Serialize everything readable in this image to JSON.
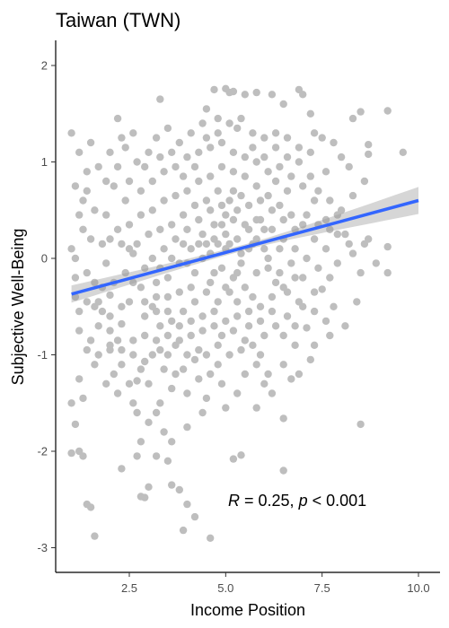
{
  "chart_data": {
    "type": "scatter",
    "title": "Taiwan (TWN)",
    "xlabel": "Income Position",
    "ylabel": "Subjective Well-Being",
    "xlim": [
      0.6,
      10.5
    ],
    "ylim": [
      -3.25,
      2.3
    ],
    "x_ticks": [
      2.5,
      5.0,
      7.5,
      10.0
    ],
    "x_tick_labels": [
      "2.5",
      "5.0",
      "7.5",
      "10.0"
    ],
    "y_ticks": [
      -3,
      -2,
      -1,
      0,
      1,
      2
    ],
    "y_tick_labels": [
      "-3",
      "-2",
      "-1",
      "0",
      "1",
      "2"
    ],
    "grid": false,
    "point_color": "#bebebe",
    "fit": {
      "x_range": [
        1.0,
        10.0
      ],
      "y_start": -0.37,
      "y_end": 0.6,
      "line_color": "#3366ff",
      "band_color": "#999999",
      "band_half_width_start": 0.09,
      "band_half_width_mid": 0.03,
      "band_half_width_end": 0.14
    },
    "annotation": {
      "r_symbol": "R",
      "r_text": " = 0.25, ",
      "p_symbol": "p",
      "p_text": " < 0.001"
    },
    "points": [
      [
        1.0,
        1.3
      ],
      [
        1.1,
        0.75
      ],
      [
        1.2,
        1.1
      ],
      [
        1.0,
        0.1
      ],
      [
        1.1,
        -0.2
      ],
      [
        1.2,
        -0.75
      ],
      [
        1.0,
        -1.5
      ],
      [
        1.1,
        -1.72
      ],
      [
        1.0,
        -2.02
      ],
      [
        1.2,
        -2.0
      ],
      [
        1.3,
        -2.05
      ],
      [
        1.4,
        -2.55
      ],
      [
        1.5,
        -2.58
      ],
      [
        1.6,
        -2.88
      ],
      [
        1.3,
        0.6
      ],
      [
        1.4,
        0.9
      ],
      [
        1.5,
        1.2
      ],
      [
        1.5,
        0.2
      ],
      [
        1.6,
        -0.5
      ],
      [
        1.7,
        -1.0
      ],
      [
        1.8,
        -0.3
      ],
      [
        1.3,
        -1.45
      ],
      [
        1.9,
        0.45
      ],
      [
        2.0,
        -0.9
      ],
      [
        2.1,
        -1.2
      ],
      [
        2.2,
        1.45
      ],
      [
        2.3,
        -2.18
      ],
      [
        2.4,
        0.6
      ],
      [
        2.5,
        0.1
      ],
      [
        2.6,
        -1.5
      ],
      [
        2.7,
        -2.05
      ],
      [
        2.8,
        -2.47
      ],
      [
        2.9,
        -2.48
      ],
      [
        3.0,
        -2.37
      ],
      [
        3.1,
        -0.5
      ],
      [
        3.2,
        -1.6
      ],
      [
        3.3,
        1.65
      ],
      [
        3.4,
        -1.8
      ],
      [
        3.5,
        -2.1
      ],
      [
        3.6,
        -2.35
      ],
      [
        3.8,
        -2.4
      ],
      [
        3.9,
        -2.82
      ],
      [
        4.0,
        -2.55
      ],
      [
        4.2,
        -2.68
      ],
      [
        4.5,
        1.55
      ],
      [
        4.6,
        -2.9
      ],
      [
        4.7,
        1.75
      ],
      [
        5.0,
        1.76
      ],
      [
        5.1,
        1.72
      ],
      [
        5.2,
        1.73
      ],
      [
        5.5,
        1.7
      ],
      [
        5.8,
        1.72
      ],
      [
        6.2,
        1.7
      ],
      [
        6.5,
        1.6
      ],
      [
        6.9,
        1.75
      ],
      [
        7.0,
        1.7
      ],
      [
        7.2,
        1.5
      ],
      [
        7.3,
        1.3
      ],
      [
        7.5,
        1.25
      ],
      [
        7.6,
        0.9
      ],
      [
        7.8,
        1.2
      ],
      [
        8.0,
        1.05
      ],
      [
        8.2,
        0.95
      ],
      [
        8.3,
        1.45
      ],
      [
        8.5,
        1.52
      ],
      [
        8.7,
        1.18
      ],
      [
        8.7,
        1.08
      ],
      [
        9.2,
        1.53
      ],
      [
        9.2,
        0.12
      ],
      [
        9.2,
        -0.15
      ],
      [
        9.6,
        1.1
      ],
      [
        8.7,
        0.2
      ],
      [
        8.6,
        0.15
      ],
      [
        8.5,
        -0.15
      ],
      [
        8.5,
        -1.72
      ],
      [
        7.8,
        -0.5
      ],
      [
        7.5,
        -0.32
      ],
      [
        7.3,
        -0.35
      ],
      [
        7.0,
        -0.5
      ],
      [
        7.1,
        -0.72
      ],
      [
        7.2,
        -1.05
      ],
      [
        6.8,
        -0.9
      ],
      [
        6.7,
        -1.25
      ],
      [
        6.5,
        -1.66
      ],
      [
        6.5,
        -2.2
      ],
      [
        6.0,
        -1.3
      ],
      [
        5.9,
        -1.0
      ],
      [
        5.5,
        -1.2
      ],
      [
        5.4,
        -2.04
      ],
      [
        5.2,
        -2.08
      ],
      [
        5.0,
        -1.55
      ],
      [
        4.8,
        -1.1
      ],
      [
        4.5,
        -1.45
      ],
      [
        4.3,
        -1.25
      ],
      [
        4.0,
        -1.4
      ],
      [
        3.7,
        -1.2
      ],
      [
        3.5,
        -1.0
      ],
      [
        3.3,
        -0.7
      ],
      [
        2.9,
        -1.07
      ],
      [
        2.7,
        -1.27
      ],
      [
        2.3,
        -0.68
      ],
      [
        2.0,
        -0.38
      ],
      [
        1.8,
        0.15
      ],
      [
        2.1,
        0.75
      ],
      [
        2.4,
        1.15
      ],
      [
        2.6,
        1.3
      ],
      [
        2.9,
        0.95
      ],
      [
        3.2,
        1.25
      ],
      [
        3.5,
        1.35
      ],
      [
        3.8,
        1.2
      ],
      [
        4.1,
        1.3
      ],
      [
        4.4,
        1.4
      ],
      [
        4.8,
        1.45
      ],
      [
        5.3,
        1.35
      ],
      [
        5.7,
        1.3
      ],
      [
        6.0,
        1.25
      ],
      [
        6.3,
        1.15
      ],
      [
        6.6,
        1.05
      ],
      [
        6.9,
        1.0
      ],
      [
        7.2,
        0.85
      ],
      [
        7.4,
        0.7
      ],
      [
        7.7,
        0.6
      ],
      [
        7.9,
        0.45
      ],
      [
        8.1,
        0.25
      ],
      [
        8.3,
        0.05
      ],
      [
        7.9,
        -0.05
      ],
      [
        7.6,
        0.1
      ],
      [
        7.3,
        0.2
      ],
      [
        7.0,
        0.35
      ],
      [
        6.7,
        0.45
      ],
      [
        6.4,
        0.55
      ],
      [
        6.1,
        0.65
      ],
      [
        5.8,
        0.75
      ],
      [
        5.5,
        0.85
      ],
      [
        5.2,
        0.9
      ],
      [
        4.9,
        0.95
      ],
      [
        4.6,
        0.85
      ],
      [
        4.3,
        0.8
      ],
      [
        4.0,
        0.7
      ],
      [
        3.7,
        0.65
      ],
      [
        3.4,
        0.6
      ],
      [
        3.1,
        0.5
      ],
      [
        2.8,
        0.45
      ],
      [
        2.5,
        0.35
      ],
      [
        2.2,
        0.3
      ],
      [
        1.9,
        -0.05
      ],
      [
        1.6,
        -0.25
      ],
      [
        1.4,
        -0.45
      ],
      [
        1.7,
        -0.7
      ],
      [
        2.0,
        -0.95
      ],
      [
        2.3,
        -1.1
      ],
      [
        2.6,
        -0.85
      ],
      [
        2.9,
        -0.6
      ],
      [
        3.2,
        -0.4
      ],
      [
        3.5,
        -0.2
      ],
      [
        3.8,
        -0.05
      ],
      [
        4.1,
        0.1
      ],
      [
        4.4,
        0.25
      ],
      [
        4.7,
        0.35
      ],
      [
        5.0,
        0.45
      ],
      [
        5.3,
        0.5
      ],
      [
        5.6,
        0.55
      ],
      [
        5.9,
        0.4
      ],
      [
        6.2,
        0.3
      ],
      [
        6.5,
        0.2
      ],
      [
        6.8,
        0.1
      ],
      [
        7.1,
        0.0
      ],
      [
        6.8,
        -0.2
      ],
      [
        6.5,
        -0.3
      ],
      [
        6.2,
        -0.4
      ],
      [
        5.9,
        -0.5
      ],
      [
        5.6,
        -0.55
      ],
      [
        5.3,
        -0.6
      ],
      [
        5.0,
        -0.65
      ],
      [
        4.7,
        -0.7
      ],
      [
        4.4,
        -0.75
      ],
      [
        4.1,
        -0.8
      ],
      [
        3.8,
        -0.85
      ],
      [
        3.5,
        -0.55
      ],
      [
        3.2,
        -0.25
      ],
      [
        2.9,
        -0.1
      ],
      [
        2.6,
        0.05
      ],
      [
        2.3,
        0.15
      ],
      [
        2.0,
        0.2
      ],
      [
        4.6,
        0.05
      ],
      [
        4.9,
        -0.1
      ],
      [
        5.2,
        -0.2
      ],
      [
        5.5,
        -0.3
      ],
      [
        5.8,
        -0.15
      ],
      [
        6.1,
        0.0
      ],
      [
        6.4,
        0.1
      ],
      [
        4.3,
        0.4
      ],
      [
        4.0,
        0.3
      ],
      [
        3.7,
        0.2
      ],
      [
        3.4,
        0.1
      ],
      [
        3.1,
        0.0
      ],
      [
        2.8,
        -0.3
      ],
      [
        2.5,
        -0.45
      ],
      [
        4.5,
        -0.35
      ],
      [
        4.2,
        -0.45
      ],
      [
        3.9,
        -0.55
      ],
      [
        3.6,
        -0.65
      ],
      [
        3.3,
        -0.95
      ],
      [
        3.0,
        -1.3
      ],
      [
        2.7,
        -1.6
      ],
      [
        4.8,
        -0.45
      ],
      [
        5.1,
        -0.35
      ],
      [
        5.4,
        -0.05
      ],
      [
        5.7,
        0.15
      ],
      [
        6.0,
        0.3
      ],
      [
        6.3,
        0.8
      ],
      [
        6.6,
        0.7
      ],
      [
        5.4,
        0.65
      ],
      [
        5.1,
        0.6
      ],
      [
        4.8,
        0.7
      ],
      [
        4.5,
        0.6
      ],
      [
        4.2,
        0.55
      ],
      [
        3.9,
        0.45
      ],
      [
        3.6,
        0.35
      ],
      [
        3.3,
        0.3
      ],
      [
        3.0,
        0.25
      ],
      [
        2.7,
        0.15
      ],
      [
        2.4,
        -0.15
      ],
      [
        2.1,
        -0.25
      ],
      [
        1.8,
        -0.55
      ],
      [
        1.5,
        -0.85
      ],
      [
        1.2,
        -0.55
      ],
      [
        1.3,
        0.3
      ],
      [
        1.6,
        0.5
      ],
      [
        1.9,
        0.8
      ],
      [
        2.2,
        0.95
      ],
      [
        2.5,
        0.8
      ],
      [
        2.8,
        0.7
      ],
      [
        3.1,
        0.8
      ],
      [
        3.4,
        0.9
      ],
      [
        3.7,
        0.95
      ],
      [
        4.0,
        1.05
      ],
      [
        4.3,
        1.1
      ],
      [
        4.6,
        1.15
      ],
      [
        4.9,
        1.2
      ],
      [
        5.2,
        1.1
      ],
      [
        5.5,
        1.05
      ],
      [
        5.8,
        1.0
      ],
      [
        6.1,
        0.9
      ],
      [
        6.4,
        0.95
      ],
      [
        6.7,
        0.85
      ],
      [
        7.0,
        0.75
      ],
      [
        7.3,
        0.6
      ],
      [
        7.6,
        0.4
      ],
      [
        7.9,
        0.25
      ],
      [
        8.2,
        0.15
      ],
      [
        7.7,
        -0.2
      ],
      [
        7.4,
        -0.1
      ],
      [
        6.9,
        -0.45
      ],
      [
        6.6,
        -0.6
      ],
      [
        6.3,
        -0.7
      ],
      [
        6.0,
        -0.8
      ],
      [
        5.7,
        -0.9
      ],
      [
        5.4,
        -0.95
      ],
      [
        5.1,
        -1.0
      ],
      [
        4.8,
        -0.9
      ],
      [
        4.5,
        -1.0
      ],
      [
        4.2,
        -1.05
      ],
      [
        3.9,
        -1.15
      ],
      [
        3.6,
        -1.35
      ],
      [
        3.3,
        -1.5
      ],
      [
        3.0,
        -1.7
      ],
      [
        2.8,
        -1.9
      ],
      [
        3.2,
        -2.05
      ],
      [
        3.6,
        -1.9
      ],
      [
        4.0,
        -1.75
      ],
      [
        4.4,
        -1.6
      ],
      [
        4.9,
        -1.3
      ],
      [
        5.3,
        -1.4
      ],
      [
        5.8,
        -1.55
      ],
      [
        6.2,
        -1.4
      ],
      [
        6.5,
        -1.1
      ],
      [
        6.9,
        -1.2
      ],
      [
        7.3,
        -0.9
      ],
      [
        7.7,
        -0.8
      ],
      [
        8.1,
        -0.7
      ],
      [
        8.4,
        -0.45
      ],
      [
        8.9,
        -0.05
      ],
      [
        2.2,
        -1.4
      ],
      [
        1.9,
        -1.3
      ],
      [
        1.6,
        -1.1
      ],
      [
        1.4,
        -0.95
      ],
      [
        1.2,
        -1.25
      ],
      [
        1.1,
        -0.4
      ],
      [
        1.2,
        0.45
      ],
      [
        1.4,
        0.7
      ],
      [
        1.7,
        0.95
      ],
      [
        2.0,
        1.1
      ],
      [
        2.3,
        1.25
      ],
      [
        2.7,
        1.0
      ],
      [
        3.0,
        1.1
      ],
      [
        3.3,
        1.05
      ],
      [
        3.6,
        1.1
      ],
      [
        3.9,
        0.85
      ],
      [
        4.2,
        0.95
      ],
      [
        4.5,
        1.25
      ],
      [
        4.8,
        1.3
      ],
      [
        5.1,
        1.4
      ],
      [
        5.4,
        1.45
      ],
      [
        5.7,
        1.15
      ],
      [
        6.0,
        1.05
      ],
      [
        6.3,
        1.3
      ],
      [
        6.6,
        1.25
      ],
      [
        6.9,
        1.15
      ],
      [
        7.2,
        1.1
      ],
      [
        4.4,
        0.0
      ],
      [
        4.7,
        -0.15
      ],
      [
        5.0,
        0.1
      ],
      [
        5.3,
        0.2
      ],
      [
        5.6,
        0.3
      ],
      [
        5.9,
        0.6
      ],
      [
        6.2,
        0.5
      ],
      [
        6.5,
        0.4
      ],
      [
        6.8,
        0.3
      ],
      [
        7.1,
        0.45
      ],
      [
        7.4,
        0.35
      ],
      [
        7.7,
        0.3
      ],
      [
        8.0,
        0.5
      ],
      [
        8.3,
        0.65
      ],
      [
        8.6,
        0.8
      ],
      [
        4.1,
        -0.3
      ],
      [
        3.8,
        -0.35
      ],
      [
        3.5,
        -0.4
      ],
      [
        3.2,
        -0.55
      ],
      [
        2.9,
        -0.8
      ],
      [
        2.6,
        -1.0
      ],
      [
        2.3,
        -0.95
      ],
      [
        2.0,
        -0.75
      ],
      [
        1.7,
        -0.45
      ],
      [
        1.4,
        -0.15
      ],
      [
        1.1,
        0.0
      ],
      [
        4.6,
        0.5
      ],
      [
        4.9,
        0.55
      ],
      [
        5.2,
        0.7
      ],
      [
        5.5,
        0.35
      ],
      [
        5.8,
        0.2
      ],
      [
        6.1,
        -0.1
      ],
      [
        6.4,
        -0.15
      ],
      [
        6.7,
        -0.05
      ],
      [
        7.0,
        -0.2
      ],
      [
        7.3,
        -0.55
      ],
      [
        7.6,
        -0.65
      ],
      [
        5.0,
        -0.3
      ],
      [
        5.3,
        -0.45
      ],
      [
        5.6,
        -0.7
      ],
      [
        5.9,
        -0.65
      ],
      [
        6.2,
        -0.55
      ],
      [
        6.5,
        -0.8
      ],
      [
        6.8,
        -0.7
      ],
      [
        4.7,
        -0.55
      ],
      [
        4.4,
        -0.6
      ],
      [
        4.1,
        -0.65
      ],
      [
        3.8,
        -0.7
      ],
      [
        3.5,
        -0.8
      ],
      [
        3.2,
        -0.85
      ],
      [
        2.9,
        -0.45
      ],
      [
        2.6,
        -0.25
      ],
      [
        2.3,
        -0.5
      ],
      [
        2.0,
        -0.6
      ],
      [
        4.3,
        -0.95
      ],
      [
        4.6,
        -1.2
      ],
      [
        4.9,
        -0.8
      ],
      [
        5.2,
        -0.75
      ],
      [
        5.5,
        -0.85
      ],
      [
        5.8,
        -1.1
      ],
      [
        6.1,
        -1.2
      ],
      [
        4.0,
        -1.0
      ],
      [
        3.7,
        -0.9
      ],
      [
        3.4,
        -1.15
      ],
      [
        3.1,
        -1.0
      ],
      [
        2.8,
        -1.15
      ],
      [
        2.5,
        -1.3
      ],
      [
        2.2,
        -0.85
      ],
      [
        5.0,
        0.25
      ],
      [
        5.1,
        0.15
      ],
      [
        4.9,
        0.35
      ],
      [
        5.2,
        0.4
      ],
      [
        4.8,
        0.15
      ],
      [
        4.7,
        0.2
      ],
      [
        5.3,
        -0.15
      ],
      [
        5.4,
        0.05
      ],
      [
        4.6,
        -0.25
      ],
      [
        4.5,
        0.15
      ],
      [
        5.6,
        0.1
      ],
      [
        5.7,
        -0.4
      ],
      [
        4.2,
        -0.15
      ],
      [
        4.3,
        0.15
      ],
      [
        4.0,
        -0.05
      ],
      [
        3.9,
        0.15
      ],
      [
        5.8,
        0.4
      ],
      [
        6.0,
        0.1
      ],
      [
        6.3,
        -0.25
      ],
      [
        6.6,
        -0.35
      ],
      [
        3.6,
        0.0
      ],
      [
        3.3,
        -0.1
      ]
    ]
  }
}
